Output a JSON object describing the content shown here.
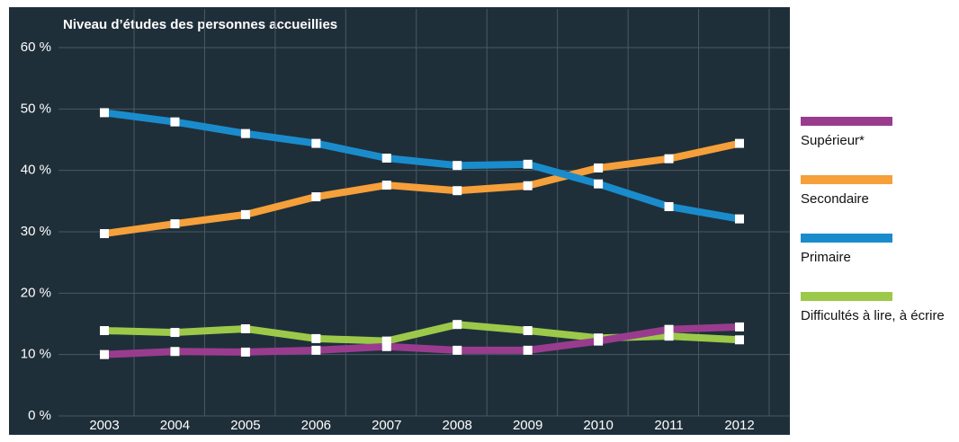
{
  "chart_data": {
    "type": "line",
    "title": "Niveau d’études des personnes accueillies",
    "categories": [
      "2003",
      "2004",
      "2005",
      "2006",
      "2007",
      "2008",
      "2009",
      "2010",
      "2011",
      "2012"
    ],
    "series": [
      {
        "name": "Supérieur*",
        "color": "#9a3c8e",
        "values": [
          10.0,
          10.5,
          10.4,
          10.7,
          11.3,
          10.7,
          10.7,
          12.2,
          14.1,
          14.5
        ]
      },
      {
        "name": "Secondaire",
        "color": "#f5a03a",
        "values": [
          29.7,
          31.3,
          32.8,
          35.7,
          37.6,
          36.7,
          37.5,
          40.4,
          41.9,
          44.4
        ]
      },
      {
        "name": "Primaire",
        "color": "#1a8ccc",
        "values": [
          49.4,
          47.9,
          46.0,
          44.4,
          42.0,
          40.8,
          41.0,
          37.8,
          34.1,
          32.1
        ]
      },
      {
        "name": "Difficultés à lire, à écrire",
        "color": "#9cc94a",
        "values": [
          13.9,
          13.6,
          14.2,
          12.6,
          12.2,
          14.9,
          13.9,
          12.7,
          13.0,
          12.4
        ]
      }
    ],
    "ylim": [
      0,
      60
    ],
    "yticks": [
      {
        "value": 0,
        "label": "0 %"
      },
      {
        "value": 10,
        "label": "10 %"
      },
      {
        "value": 20,
        "label": "20 %"
      },
      {
        "value": 30,
        "label": "30 %"
      },
      {
        "value": 40,
        "label": "40 %"
      },
      {
        "value": 50,
        "label": "50 %"
      },
      {
        "value": 60,
        "label": "60 %"
      }
    ],
    "grid": true
  }
}
